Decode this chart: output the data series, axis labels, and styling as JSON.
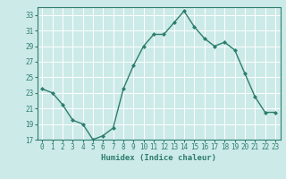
{
  "x": [
    0,
    1,
    2,
    3,
    4,
    5,
    6,
    7,
    8,
    9,
    10,
    11,
    12,
    13,
    14,
    15,
    16,
    17,
    18,
    19,
    20,
    21,
    22,
    23
  ],
  "y": [
    23.5,
    23.0,
    21.5,
    19.5,
    19.0,
    17.0,
    17.5,
    18.5,
    23.5,
    26.5,
    29.0,
    30.5,
    30.5,
    32.0,
    33.5,
    31.5,
    30.0,
    29.0,
    29.5,
    28.5,
    25.5,
    22.5,
    20.5,
    20.5
  ],
  "xlabel": "Humidex (Indice chaleur)",
  "ylim": [
    17,
    34
  ],
  "xlim": [
    -0.5,
    23.5
  ],
  "yticks": [
    17,
    19,
    21,
    23,
    25,
    27,
    29,
    31,
    33
  ],
  "xtick_labels": [
    "0",
    "1",
    "2",
    "3",
    "4",
    "5",
    "6",
    "7",
    "8",
    "9",
    "10",
    "11",
    "12",
    "13",
    "14",
    "15",
    "16",
    "17",
    "18",
    "19",
    "20",
    "21",
    "22",
    "23"
  ],
  "line_color": "#2e7d6e",
  "bg_color": "#cceae8",
  "grid_color": "#ffffff",
  "grid_linewidth": 0.7,
  "line_width": 1.0,
  "marker_size": 2.0,
  "tick_fontsize": 5.5,
  "xlabel_fontsize": 6.5
}
